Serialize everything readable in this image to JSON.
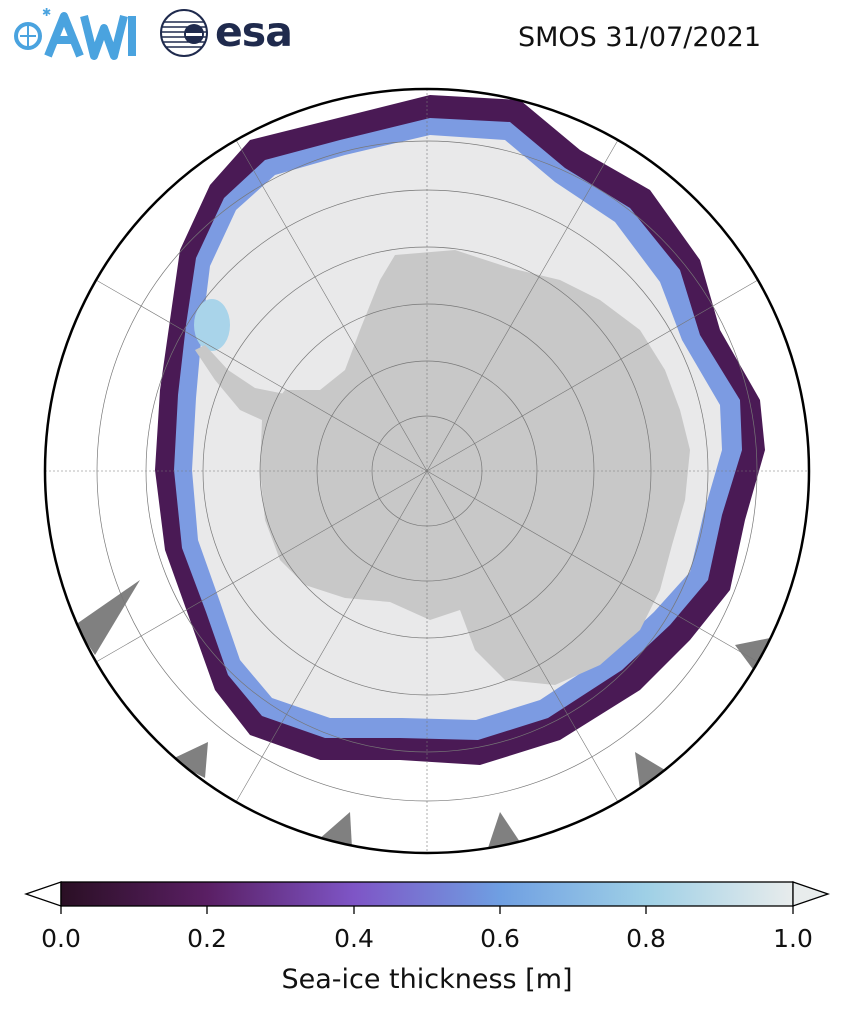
{
  "header": {
    "title": "SMOS 31/07/2021",
    "logos": [
      {
        "name": "AWI",
        "text": "AWI",
        "color": "#4aa3df"
      },
      {
        "name": "esa",
        "text": "esa",
        "color": "#1f2a4d"
      }
    ]
  },
  "map": {
    "projection": "south-polar-stereographic",
    "variable": "Sea-ice thickness",
    "land_color": "#c8c8c8",
    "no_data_color": "#808080",
    "graticule": true
  },
  "colorbar": {
    "label": "Sea-ice thickness [m]",
    "min": 0.0,
    "max": 1.0,
    "extend": "both",
    "ticks": [
      "0.0",
      "0.2",
      "0.4",
      "0.6",
      "0.8",
      "1.0"
    ],
    "colors": [
      "#2a0f24",
      "#5a1f64",
      "#7e55c6",
      "#6f9fe2",
      "#9fd0e6",
      "#e8ecec"
    ]
  }
}
